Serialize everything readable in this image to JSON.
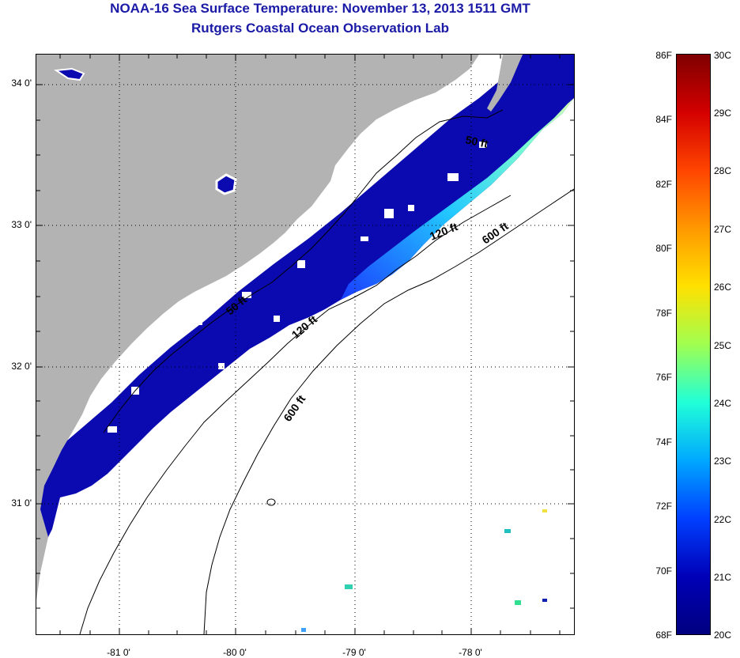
{
  "header": {
    "title_line1": "NOAA-16 Sea Surface Temperature:  November 13, 2013 1511 GMT",
    "title_line2": "Rutgers Coastal Ocean Observation Lab"
  },
  "map": {
    "lat_labels": [
      "34 0'",
      "33 0'",
      "32 0'",
      "31 0'"
    ],
    "lon_labels": [
      "-81 0'",
      "-80 0'",
      "-79 0'",
      "-78 0'"
    ],
    "contour_labels": [
      "50 ft",
      "120 ft",
      "600 ft",
      "50 ft",
      "120 ft",
      "600 ft"
    ],
    "land_color": "#b3b3b3",
    "cloud_color": "#ffffff"
  },
  "colorbar": {
    "fahrenheit_labels": [
      "86F",
      "84F",
      "82F",
      "80F",
      "78F",
      "76F",
      "74F",
      "72F",
      "70F",
      "68F"
    ],
    "celsius_labels": [
      "30C",
      "29C",
      "28C",
      "27C",
      "26C",
      "25C",
      "24C",
      "23C",
      "22C",
      "21C",
      "20C"
    ],
    "colors": [
      "#7f0000",
      "#d40000",
      "#ff4500",
      "#ff9900",
      "#ffe000",
      "#a0ff50",
      "#20ffd8",
      "#00a8ff",
      "#0040ff",
      "#0000b8",
      "#00007f"
    ]
  }
}
